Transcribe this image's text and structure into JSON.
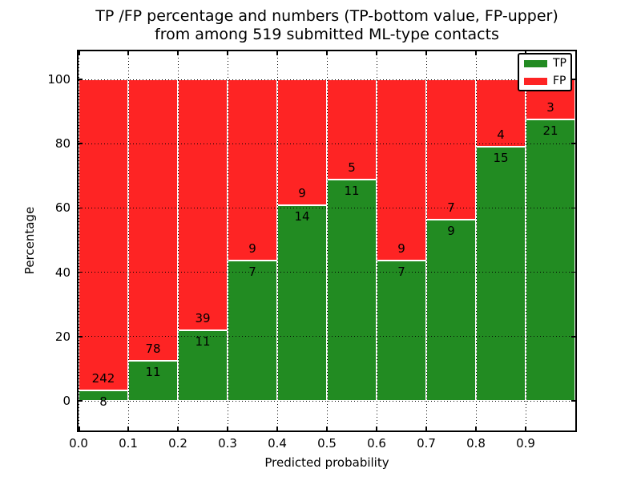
{
  "figure": {
    "title_line1": "TP /FP percentage and numbers (TP-bottom value, FP-upper)",
    "title_line2": "from among 519 submitted ML-type contacts",
    "xlabel": "Predicted probability",
    "ylabel": "Percentage"
  },
  "legend": {
    "items": [
      {
        "label": "TP",
        "color": "#228b22"
      },
      {
        "label": "FP",
        "color": "#fe2424"
      }
    ]
  },
  "chart_data": {
    "type": "bar",
    "subtype": "stacked-percentage-histogram",
    "title": "TP /FP percentage and numbers (TP-bottom value, FP-upper) from among 519 submitted ML-type contacts",
    "xlabel": "Predicted probability",
    "ylabel": "Percentage",
    "total_contacts": 519,
    "bin_edges": [
      0.0,
      0.1,
      0.2,
      0.3,
      0.4,
      0.5,
      0.6,
      0.7,
      0.8,
      0.9,
      1.0
    ],
    "x_tick_labels": [
      "0.0",
      "0.1",
      "0.2",
      "0.3",
      "0.4",
      "0.5",
      "0.6",
      "0.7",
      "0.8",
      "0.9"
    ],
    "y_ticks": [
      0,
      20,
      40,
      60,
      80,
      100
    ],
    "xlim": [
      0.0,
      1.0
    ],
    "ylim": [
      -10,
      110
    ],
    "grid": true,
    "grid_style": "dotted",
    "legend_position": "upper right",
    "series": [
      {
        "name": "TP",
        "color": "#228b22",
        "counts": [
          8,
          11,
          11,
          7,
          14,
          11,
          7,
          9,
          15,
          21
        ]
      },
      {
        "name": "FP",
        "color": "#fe2424",
        "counts": [
          242,
          78,
          39,
          9,
          9,
          5,
          9,
          7,
          4,
          3
        ]
      }
    ],
    "tp_percent": [
      3.2,
      12.4,
      22.0,
      43.8,
      60.9,
      68.8,
      43.8,
      56.2,
      78.9,
      87.5
    ],
    "annotation_note": "FP count printed just above TP/FP boundary, TP count just below"
  }
}
